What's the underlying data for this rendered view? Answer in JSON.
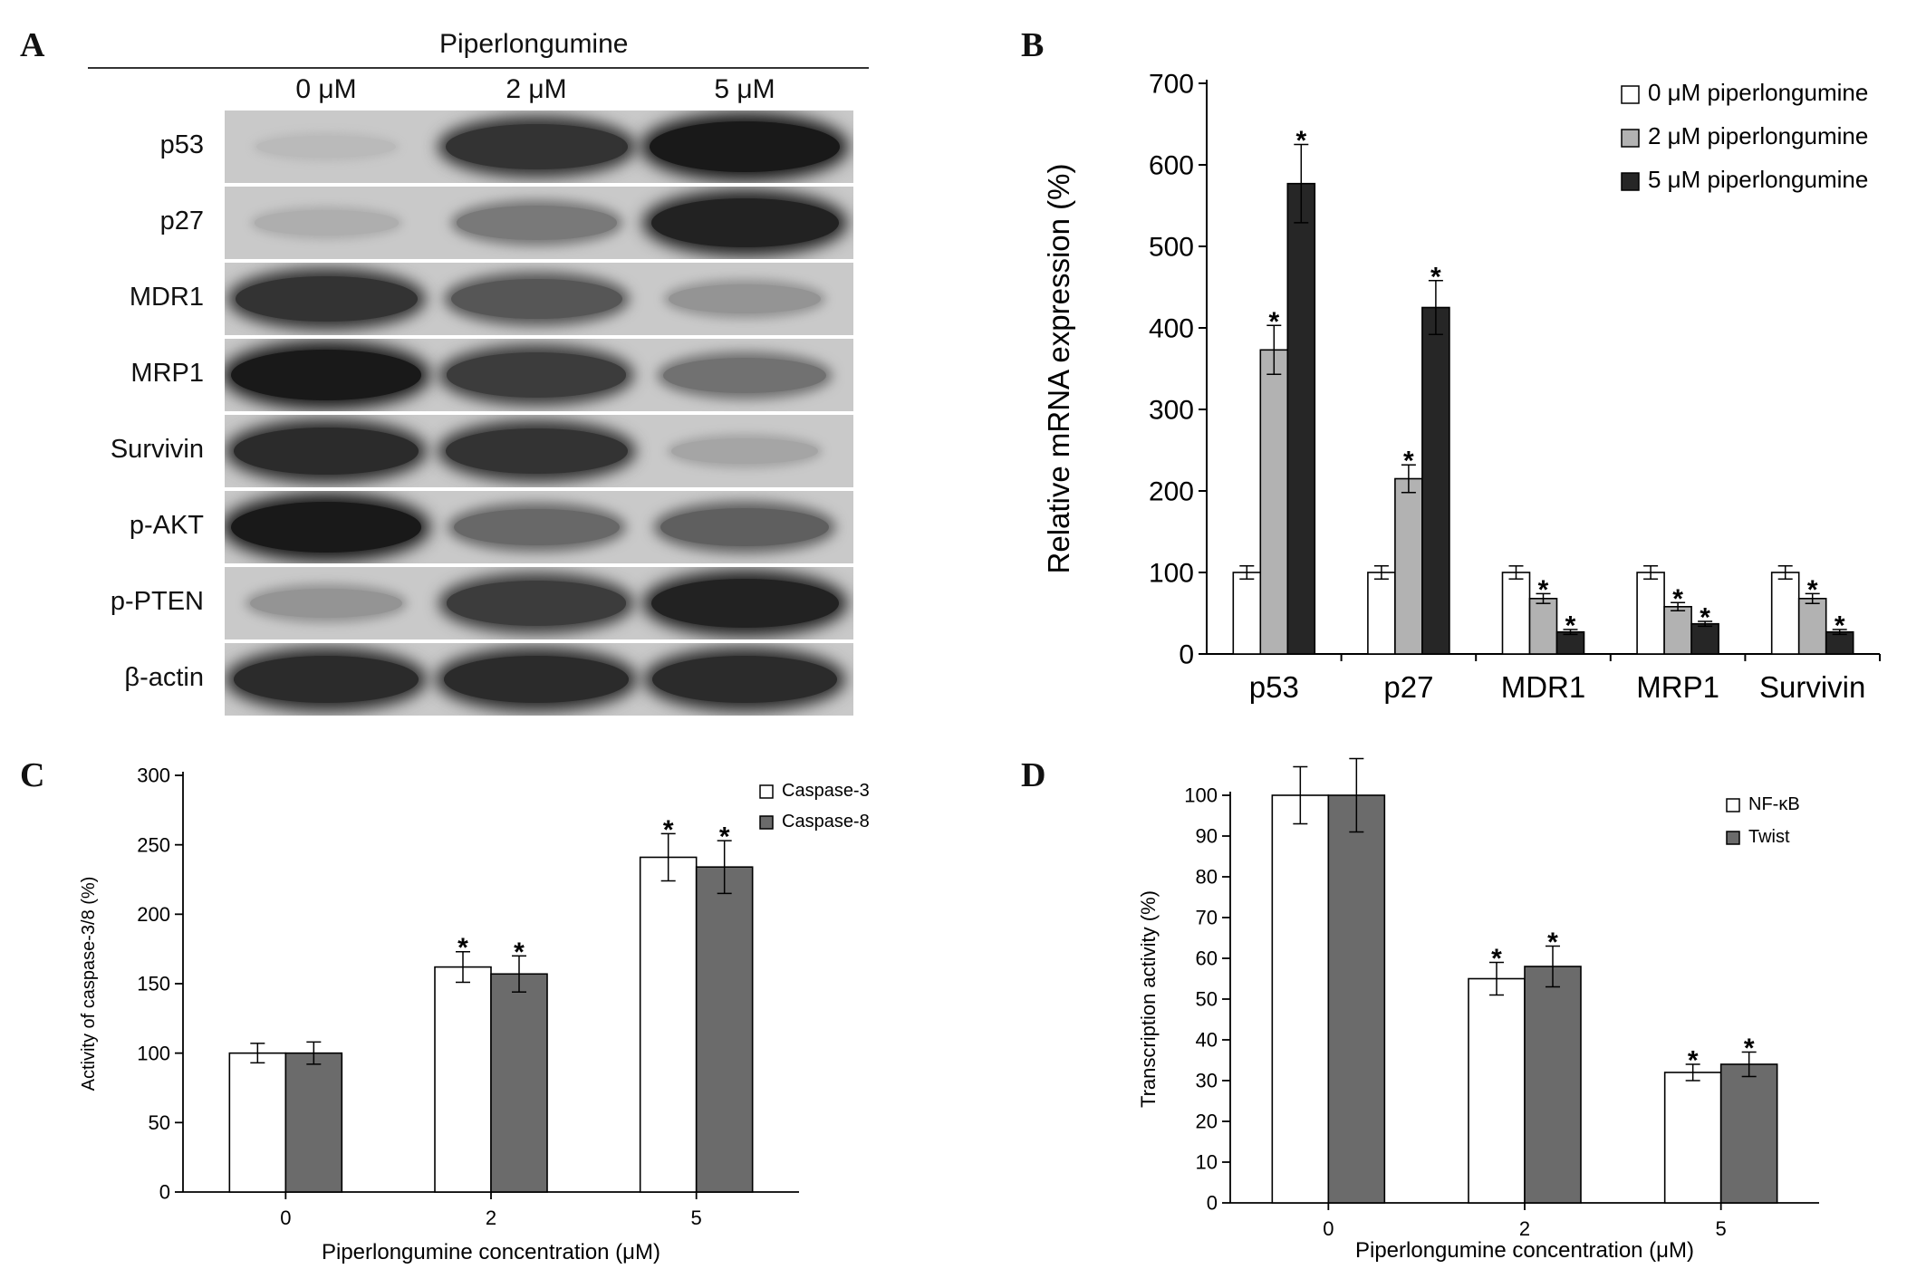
{
  "panels": {
    "A": "A",
    "B": "B",
    "C": "C",
    "D": "D"
  },
  "blot": {
    "title": "Piperlongumine",
    "concentrations": [
      "0 μM",
      "2 μM",
      "5 μM"
    ],
    "proteins": [
      {
        "name": "p53",
        "intensity": [
          0.08,
          0.85,
          1.0
        ]
      },
      {
        "name": "p27",
        "intensity": [
          0.15,
          0.45,
          0.95
        ]
      },
      {
        "name": "MDR1",
        "intensity": [
          0.85,
          0.65,
          0.3
        ]
      },
      {
        "name": "MRP1",
        "intensity": [
          1.0,
          0.8,
          0.5
        ]
      },
      {
        "name": "Survivin",
        "intensity": [
          0.9,
          0.85,
          0.2
        ]
      },
      {
        "name": "p-AKT",
        "intensity": [
          1.0,
          0.55,
          0.6
        ]
      },
      {
        "name": "p-PTEN",
        "intensity": [
          0.3,
          0.8,
          0.95
        ]
      },
      {
        "name": "β-actin",
        "intensity": [
          0.9,
          0.9,
          0.9
        ]
      }
    ]
  },
  "chart_data": [
    {
      "panel": "B",
      "type": "bar",
      "ylabel": "Relative mRNA expression (%)",
      "xlabel": "",
      "ylim": [
        0,
        700
      ],
      "yticks": [
        0,
        100,
        200,
        300,
        400,
        500,
        600,
        700
      ],
      "categories": [
        "p53",
        "p27",
        "MDR1",
        "MRP1",
        "Survivin"
      ],
      "series": [
        {
          "name": "0 μM piperlongumine",
          "color": "#ffffff",
          "values": [
            100,
            100,
            100,
            100,
            100
          ],
          "errors": [
            8,
            8,
            8,
            8,
            8
          ],
          "significant": [
            false,
            false,
            false,
            false,
            false
          ]
        },
        {
          "name": "2 μM piperlongumine",
          "color": "#b2b2b2",
          "values": [
            373,
            215,
            68,
            58,
            68
          ],
          "errors": [
            30,
            17,
            6,
            5,
            6
          ],
          "significant": [
            true,
            true,
            true,
            true,
            true
          ]
        },
        {
          "name": "5 μM piperlongumine",
          "color": "#262626",
          "values": [
            577,
            425,
            27,
            37,
            27
          ],
          "errors": [
            48,
            33,
            3,
            3,
            3
          ],
          "significant": [
            true,
            true,
            true,
            true,
            true
          ]
        }
      ],
      "significance_mark": "*",
      "legend": "top-right"
    },
    {
      "panel": "C",
      "type": "bar",
      "ylabel": "Activity of caspase-3/8 (%)",
      "xlabel": "Piperlongumine concentration (μM)",
      "ylim": [
        0,
        300
      ],
      "yticks": [
        0,
        50,
        100,
        150,
        200,
        250,
        300
      ],
      "categories": [
        "0",
        "2",
        "5"
      ],
      "series": [
        {
          "name": "Caspase-3",
          "color": "#ffffff",
          "values": [
            100,
            162,
            241
          ],
          "errors": [
            7,
            11,
            17
          ],
          "significant": [
            false,
            true,
            true
          ]
        },
        {
          "name": "Caspase-8",
          "color": "#6b6b6b",
          "values": [
            100,
            157,
            234
          ],
          "errors": [
            8,
            13,
            19
          ],
          "significant": [
            false,
            true,
            true
          ]
        }
      ],
      "significance_mark": "*",
      "legend": "top-right"
    },
    {
      "panel": "D",
      "type": "bar",
      "ylabel": "Transcription activity (%)",
      "xlabel": "Piperlongumine concentration (μM)",
      "ylim": [
        0,
        100
      ],
      "yticks": [
        0,
        10,
        20,
        30,
        40,
        50,
        60,
        70,
        80,
        90,
        100
      ],
      "categories": [
        "0",
        "2",
        "5"
      ],
      "series": [
        {
          "name": "NF-κB",
          "color": "#ffffff",
          "values": [
            100,
            55,
            32
          ],
          "errors": [
            7,
            4,
            2
          ],
          "significant": [
            false,
            true,
            true
          ]
        },
        {
          "name": "Twist",
          "color": "#6b6b6b",
          "values": [
            100,
            58,
            34
          ],
          "errors": [
            9,
            5,
            3
          ],
          "significant": [
            false,
            true,
            true
          ]
        }
      ],
      "significance_mark": "*",
      "legend": "top-right"
    }
  ]
}
